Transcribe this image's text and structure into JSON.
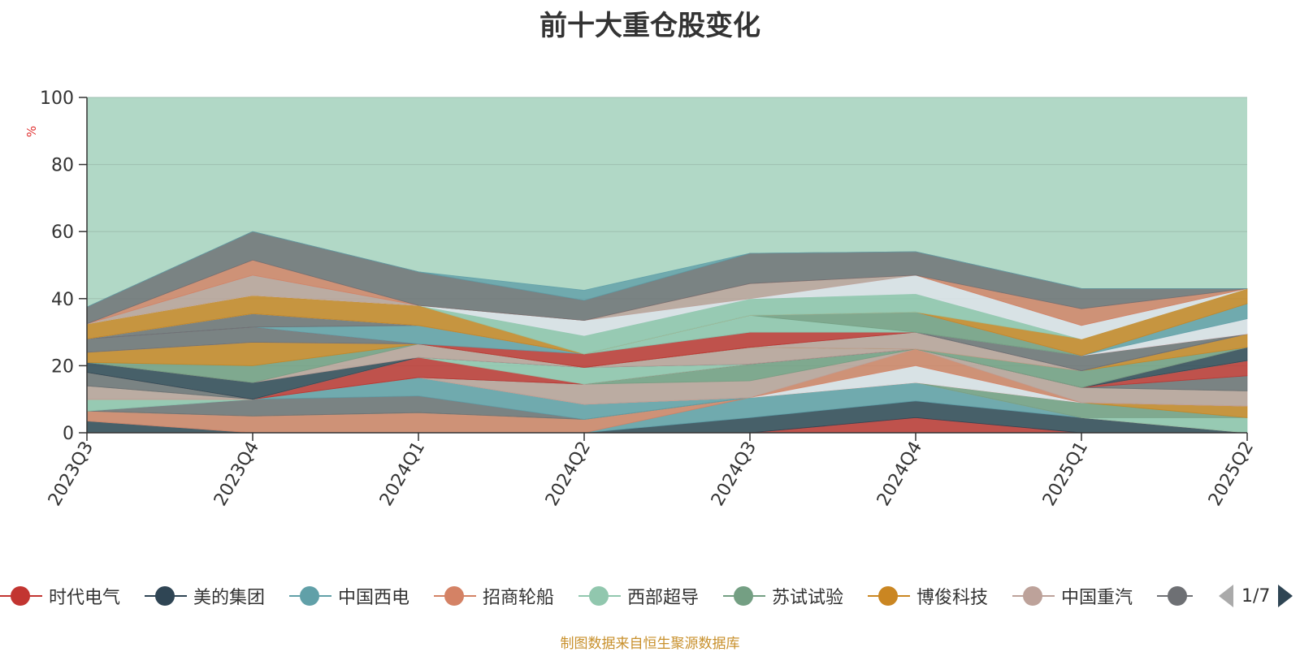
{
  "title": "前十大重仓股变化",
  "source_note": "制图数据来自恒生聚源数据库",
  "pager": {
    "text": "1/7"
  },
  "chart_data": {
    "type": "area",
    "stacked": true,
    "ylabel": "%",
    "ylim": [
      0,
      100
    ],
    "yticks": [
      0,
      20,
      40,
      60,
      80,
      100
    ],
    "x": [
      "2023Q3",
      "2023Q4",
      "2024Q1",
      "2024Q2",
      "2024Q3",
      "2024Q4",
      "2025Q1",
      "2025Q2"
    ],
    "other_color": "#b1d8c6",
    "series": [
      {
        "name": "时代电气",
        "color": "#c23531",
        "values": [
          0,
          0,
          0,
          0,
          0,
          4.5,
          0,
          0
        ]
      },
      {
        "name": "美的集团",
        "color": "#2f4554",
        "values": [
          3.5,
          0,
          0,
          0,
          4.5,
          5,
          4.5,
          0
        ]
      },
      {
        "name": "中国西电",
        "color": "#61a0a8",
        "values": [
          0,
          0,
          0,
          0,
          6,
          5.5,
          0,
          0
        ]
      },
      {
        "name": "招商轮船",
        "color": "#d48265",
        "values": [
          3,
          5,
          6,
          4,
          0,
          0,
          0,
          0
        ]
      },
      {
        "name": "西部超导",
        "color": "#91c7ae",
        "values": [
          0,
          0,
          0,
          0,
          0,
          0,
          0,
          4.5
        ]
      },
      {
        "name": "苏试试验",
        "color": "#749f83",
        "values": [
          0,
          0,
          0,
          0,
          0,
          0,
          4.5,
          0
        ]
      },
      {
        "name": "博俊科技",
        "color": "#ca8622",
        "values": [
          0,
          0,
          0,
          0,
          0,
          0,
          0,
          3.5
        ]
      },
      {
        "name": "中国重汽",
        "color": "#bda29a",
        "values": [
          0,
          0,
          0,
          0,
          0,
          0,
          0,
          0
        ]
      },
      {
        "name": "",
        "color": "#6e7074",
        "values": [
          0,
          5,
          5,
          0,
          0,
          0,
          0,
          0
        ]
      },
      {
        "name": "",
        "color": "#61a0a8",
        "values": [
          0,
          0,
          5.5,
          4.5,
          0,
          0,
          0,
          0
        ]
      },
      {
        "name": "",
        "color": "#91c7ae",
        "values": [
          3.5,
          0,
          0,
          0,
          0,
          0,
          0,
          0
        ]
      },
      {
        "name": "",
        "color": "#d48265",
        "values": [
          0,
          0,
          0,
          0,
          0,
          0,
          0,
          0
        ]
      },
      {
        "name": "",
        "color": "#e0e4ec",
        "values": [
          0,
          0,
          0,
          0,
          0,
          5,
          0,
          0
        ]
      },
      {
        "name": "",
        "color": "#d48265",
        "values": [
          0,
          0,
          0,
          0,
          0,
          5,
          0,
          0
        ]
      },
      {
        "name": "",
        "color": "#bda29a",
        "values": [
          4,
          0,
          0,
          6,
          5,
          0,
          4.5,
          4.5
        ]
      },
      {
        "name": "",
        "color": "#749f83",
        "values": [
          0,
          0,
          0,
          0,
          5,
          0,
          0,
          0
        ]
      },
      {
        "name": "",
        "color": "#6e7074",
        "values": [
          4,
          0,
          0,
          0,
          0,
          0,
          0,
          4.5
        ]
      },
      {
        "name": "",
        "color": "#c23531",
        "values": [
          0,
          0,
          6,
          0,
          0,
          0,
          0,
          4.5
        ]
      },
      {
        "name": "",
        "color": "#91c7ae",
        "values": [
          0,
          0,
          0,
          5,
          0,
          0,
          0,
          0
        ]
      },
      {
        "name": "",
        "color": "#2f4554",
        "values": [
          3,
          5,
          0,
          0,
          0,
          0,
          0,
          4
        ]
      },
      {
        "name": "",
        "color": "#bda29a",
        "values": [
          0,
          0,
          4,
          0,
          5,
          0,
          0,
          0
        ]
      },
      {
        "name": "",
        "color": "#749f83",
        "values": [
          0,
          5,
          0,
          0,
          0,
          0,
          5,
          0
        ]
      },
      {
        "name": "",
        "color": "#ca8622",
        "values": [
          3,
          7,
          0,
          0,
          0,
          0,
          0,
          4
        ]
      },
      {
        "name": "",
        "color": "#bda29a",
        "values": [
          0,
          0,
          0,
          0,
          0,
          5,
          0,
          0
        ]
      },
      {
        "name": "",
        "color": "#6e7074",
        "values": [
          4,
          4.5,
          0,
          0,
          0,
          0,
          0,
          0
        ]
      },
      {
        "name": "",
        "color": "#c23531",
        "values": [
          0,
          0,
          0,
          4,
          4.5,
          0,
          0,
          0
        ]
      },
      {
        "name": "",
        "color": "#61a0a8",
        "values": [
          0,
          0,
          5.5,
          0,
          0,
          0,
          0,
          0
        ]
      },
      {
        "name": "",
        "color": "#6e7074",
        "values": [
          0,
          4,
          0,
          0,
          0,
          0,
          4.5,
          0
        ]
      },
      {
        "name": "",
        "color": "#91c7ae",
        "values": [
          0,
          0,
          0,
          0,
          5,
          0,
          0,
          0
        ]
      },
      {
        "name": "",
        "color": "#749f83",
        "values": [
          0,
          0,
          0,
          0,
          0,
          6,
          0,
          0
        ]
      },
      {
        "name": "",
        "color": "#c23531",
        "values": [
          0,
          0,
          0,
          0,
          0,
          0,
          0,
          0
        ]
      },
      {
        "name": "",
        "color": "#e0e4ec",
        "values": [
          0,
          0,
          0,
          0,
          0,
          0,
          0,
          4.5
        ]
      },
      {
        "name": "",
        "color": "#61a0a8",
        "values": [
          0,
          0,
          0,
          0,
          0,
          0,
          0,
          4.5
        ]
      },
      {
        "name": "",
        "color": "#ca8622",
        "values": [
          4.5,
          5.5,
          6,
          0,
          0,
          0,
          5,
          4.5
        ]
      },
      {
        "name": "",
        "color": "#91c7ae",
        "values": [
          0,
          0,
          0,
          5.5,
          5,
          5.5,
          0,
          0
        ]
      },
      {
        "name": "",
        "color": "#e0e4ec",
        "values": [
          0,
          0,
          0,
          4.5,
          0,
          5.5,
          4,
          0
        ]
      },
      {
        "name": "",
        "color": "#bda29a",
        "values": [
          0,
          6,
          0,
          0,
          4.5,
          0,
          0,
          0
        ]
      },
      {
        "name": "",
        "color": "#d48265",
        "values": [
          0,
          4.5,
          0,
          0,
          0,
          0,
          5,
          0
        ]
      },
      {
        "name": "",
        "color": "#6e7074",
        "values": [
          5,
          8.5,
          10,
          6,
          9,
          7,
          6,
          0
        ]
      },
      {
        "name": "",
        "color": "#61a0a8",
        "values": [
          0,
          0,
          0,
          3,
          0,
          0,
          0,
          0
        ]
      }
    ]
  }
}
